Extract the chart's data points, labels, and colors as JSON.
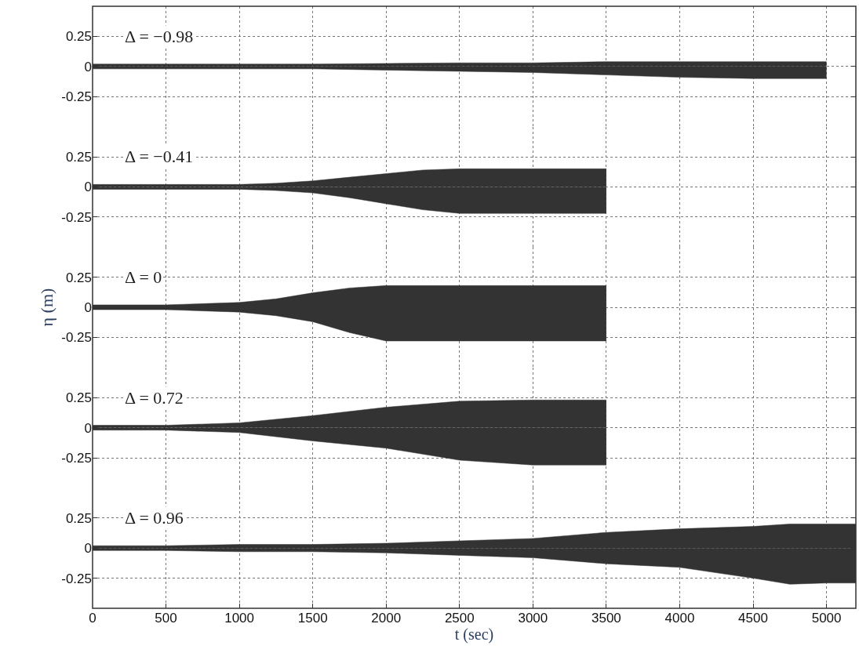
{
  "chart_data": [
    {
      "type": "area",
      "annotations": [
        "Δ = −0.98"
      ],
      "xlim": [
        0,
        5200
      ],
      "xticks": [
        0,
        500,
        1000,
        1500,
        2000,
        2500,
        3000,
        3500,
        4000,
        4500,
        5000
      ],
      "ylim": [
        -0.5,
        0.5
      ],
      "yticks": [
        0.25,
        0,
        -0.25
      ],
      "grid": true,
      "tick_labels": "y",
      "series": [
        {
          "color": "#333333",
          "x": [
            0,
            500,
            1000,
            1500,
            2000,
            2500,
            3000,
            3500,
            4000,
            4500,
            5000
          ],
          "values": [
            0.02,
            0.02,
            0.02,
            0.02,
            0.025,
            0.03,
            0.03,
            0.04,
            0.04,
            0.04,
            0.04
          ]
        },
        {
          "color": "#333333",
          "x": [
            0,
            500,
            1000,
            1500,
            2000,
            2500,
            3000,
            3500,
            4000,
            4500,
            5000
          ],
          "values": [
            -0.02,
            -0.02,
            -0.02,
            -0.02,
            -0.03,
            -0.04,
            -0.05,
            -0.07,
            -0.09,
            -0.1,
            -0.1
          ]
        }
      ]
    },
    {
      "type": "area",
      "annotations": [
        "Δ = −0.41"
      ],
      "xlim": [
        0,
        5200
      ],
      "xticks": [
        0,
        500,
        1000,
        1500,
        2000,
        2500,
        3000,
        3500,
        4000,
        4500,
        5000
      ],
      "ylim": [
        -0.5,
        0.5
      ],
      "yticks": [
        0.25,
        0,
        -0.25
      ],
      "grid": true,
      "tick_labels": "y",
      "series": [
        {
          "color": "#333333",
          "x": [
            0,
            500,
            1000,
            1250,
            1500,
            1750,
            2000,
            2250,
            2500,
            3000,
            3500
          ],
          "values": [
            0.02,
            0.02,
            0.02,
            0.03,
            0.05,
            0.08,
            0.11,
            0.14,
            0.15,
            0.15,
            0.15
          ]
        },
        {
          "color": "#333333",
          "x": [
            0,
            500,
            1000,
            1250,
            1500,
            1750,
            2000,
            2250,
            2500,
            3000,
            3500
          ],
          "values": [
            -0.02,
            -0.02,
            -0.02,
            -0.03,
            -0.05,
            -0.09,
            -0.14,
            -0.19,
            -0.22,
            -0.22,
            -0.22
          ]
        }
      ]
    },
    {
      "type": "area",
      "annotations": [
        "Δ = 0"
      ],
      "ylabel": "η (m)",
      "xlim": [
        0,
        5200
      ],
      "xticks": [
        0,
        500,
        1000,
        1500,
        2000,
        2500,
        3000,
        3500,
        4000,
        4500,
        5000
      ],
      "ylim": [
        -0.5,
        0.5
      ],
      "yticks": [
        0.25,
        0,
        -0.25
      ],
      "grid": true,
      "tick_labels": "y",
      "series": [
        {
          "color": "#333333",
          "x": [
            0,
            500,
            1000,
            1250,
            1500,
            1750,
            2000,
            2500,
            3000,
            3500
          ],
          "values": [
            0.02,
            0.02,
            0.04,
            0.07,
            0.12,
            0.16,
            0.18,
            0.18,
            0.18,
            0.18
          ]
        },
        {
          "color": "#333333",
          "x": [
            0,
            500,
            1000,
            1250,
            1500,
            1750,
            2000,
            2500,
            3000,
            3500
          ],
          "values": [
            -0.02,
            -0.02,
            -0.04,
            -0.07,
            -0.12,
            -0.21,
            -0.28,
            -0.28,
            -0.28,
            -0.28
          ]
        }
      ]
    },
    {
      "type": "area",
      "annotations": [
        "Δ = 0.72"
      ],
      "xlim": [
        0,
        5200
      ],
      "xticks": [
        0,
        500,
        1000,
        1500,
        2000,
        2500,
        3000,
        3500,
        4000,
        4500,
        5000
      ],
      "ylim": [
        -0.5,
        0.5
      ],
      "yticks": [
        0.25,
        0,
        -0.25
      ],
      "grid": true,
      "tick_labels": "y",
      "series": [
        {
          "color": "#333333",
          "x": [
            0,
            500,
            1000,
            1500,
            2000,
            2500,
            3000,
            3500
          ],
          "values": [
            0.02,
            0.02,
            0.04,
            0.1,
            0.17,
            0.22,
            0.23,
            0.23
          ]
        },
        {
          "color": "#333333",
          "x": [
            0,
            500,
            1000,
            1500,
            2000,
            2500,
            3000,
            3500
          ],
          "values": [
            -0.02,
            -0.02,
            -0.04,
            -0.11,
            -0.17,
            -0.27,
            -0.31,
            -0.31
          ]
        }
      ]
    },
    {
      "type": "area",
      "annotations": [
        "Δ = 0.96"
      ],
      "xlabel": "t (sec)",
      "xlim": [
        0,
        5200
      ],
      "xticks": [
        0,
        500,
        1000,
        1500,
        2000,
        2500,
        3000,
        3500,
        4000,
        4500,
        5000
      ],
      "ylim": [
        -0.5,
        0.5
      ],
      "yticks": [
        0.25,
        0,
        -0.25
      ],
      "grid": true,
      "series": [
        {
          "color": "#333333",
          "x": [
            0,
            500,
            1000,
            1500,
            2000,
            2500,
            3000,
            3500,
            4000,
            4500,
            4750,
            5000,
            5200
          ],
          "values": [
            0.02,
            0.02,
            0.03,
            0.03,
            0.04,
            0.06,
            0.08,
            0.13,
            0.16,
            0.18,
            0.2,
            0.2,
            0.2
          ]
        },
        {
          "color": "#333333",
          "x": [
            0,
            500,
            1000,
            1500,
            2000,
            2500,
            3000,
            3500,
            4000,
            4500,
            4750,
            5000,
            5200
          ],
          "values": [
            -0.02,
            -0.02,
            -0.03,
            -0.03,
            -0.04,
            -0.06,
            -0.08,
            -0.13,
            -0.16,
            -0.25,
            -0.3,
            -0.29,
            -0.29
          ]
        }
      ]
    }
  ]
}
